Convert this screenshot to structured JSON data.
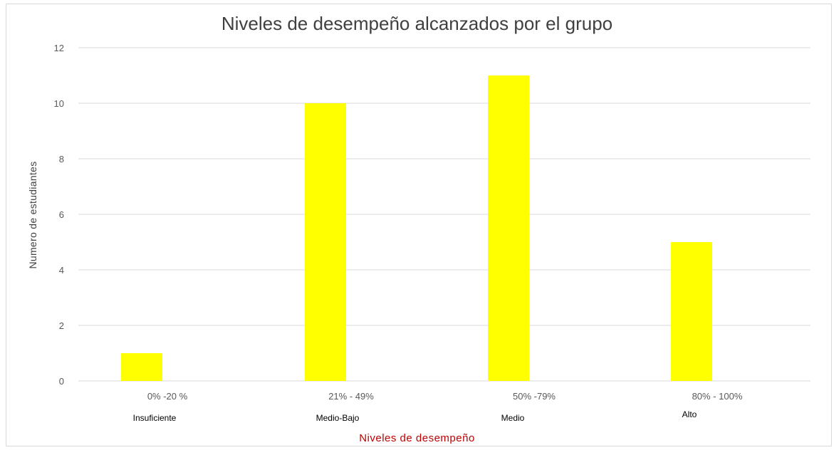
{
  "chart_data": {
    "type": "bar",
    "title": "Niveles de desempeño alcanzados por el grupo",
    "xlabel": "Niveles de desempeño",
    "ylabel": "Numero de  estudiantes",
    "categories": [
      "0% -20 %",
      "21% - 49%",
      "50% -79%",
      "80% - 100%"
    ],
    "category_sublabels": [
      "Insuficiente",
      "Medio-Bajo",
      "Medio",
      "Alto"
    ],
    "series": [
      {
        "values": [
          1,
          10,
          11,
          5
        ]
      }
    ],
    "ylim": [
      0,
      12
    ],
    "yticks": [
      "0",
      "2",
      "4",
      "6",
      "8",
      "10",
      "12"
    ],
    "grid": true,
    "legend": "none",
    "colors": {
      "bar": "#ffff00",
      "grid": "#d9d9d9",
      "axis_text": "#595959",
      "title": "#404040",
      "xlabel": "#c00000",
      "sublabel": "#000000"
    }
  }
}
